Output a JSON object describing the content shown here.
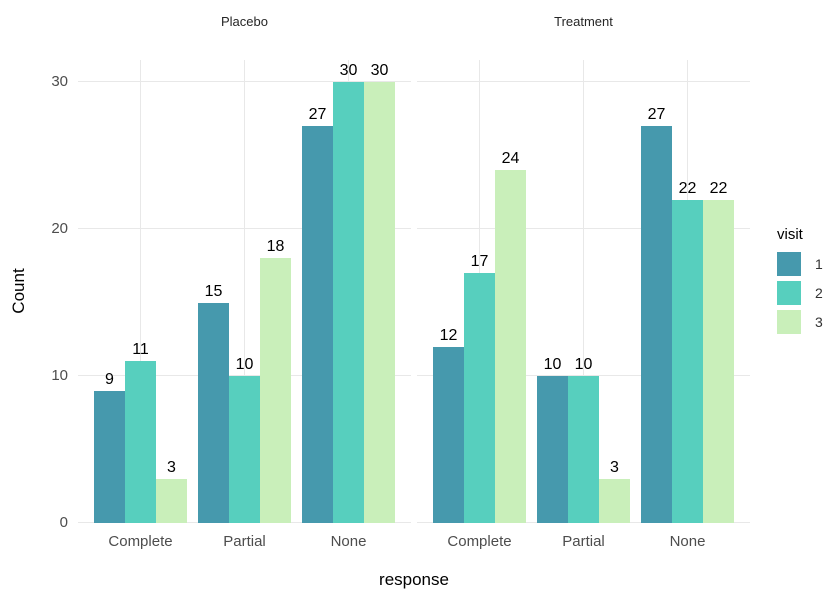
{
  "chart_data": {
    "type": "bar",
    "grouping": "dodged",
    "title": "",
    "categories": [
      "Complete",
      "Partial",
      "None"
    ],
    "facets": [
      {
        "label": "Placebo",
        "series": [
          {
            "name": "1",
            "values": [
              9,
              15,
              27
            ]
          },
          {
            "name": "2",
            "values": [
              11,
              10,
              30
            ]
          },
          {
            "name": "3",
            "values": [
              3,
              18,
              30
            ]
          }
        ]
      },
      {
        "label": "Treatment",
        "series": [
          {
            "name": "1",
            "values": [
              12,
              10,
              27
            ]
          },
          {
            "name": "2",
            "values": [
              17,
              10,
              22
            ]
          },
          {
            "name": "3",
            "values": [
              24,
              3,
              22
            ]
          }
        ]
      }
    ],
    "xlabel": "response",
    "ylabel": "Count",
    "y_ticks": [
      0,
      10,
      20,
      30
    ],
    "ylim": [
      0,
      31.5
    ],
    "bar_value_labels": true,
    "grid": {
      "horizontal": "major-only",
      "vertical": "category-centers",
      "color": "#E8E8E8"
    },
    "legend": {
      "title": "visit",
      "position": "right",
      "entries": [
        {
          "label": "1",
          "color": "#4699AD"
        },
        {
          "label": "2",
          "color": "#57CFBE"
        },
        {
          "label": "3",
          "color": "#C9EFBA"
        }
      ]
    },
    "colors": {
      "background": "#FFFFFF",
      "axis_text": "#4D4D4D",
      "strip_text": "#262626",
      "title_text": "#000000"
    }
  }
}
